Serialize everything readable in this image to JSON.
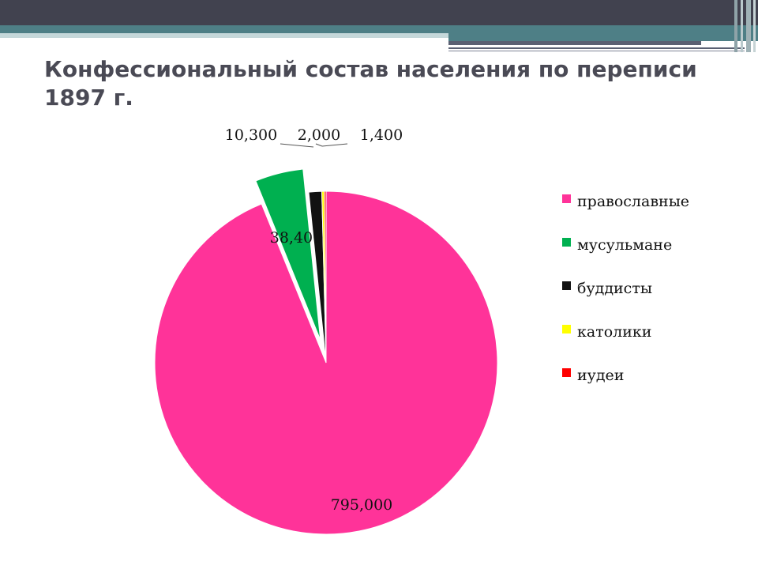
{
  "slide": {
    "title": "Конфессиональный состав населения по переписи 1897 г."
  },
  "chart_data": {
    "type": "pie",
    "exploded": true,
    "legend_position": "right",
    "categories": [
      "православные",
      "мусульмане",
      "буддисты",
      "католики",
      "иудеи"
    ],
    "values": [
      795000,
      38400,
      10300,
      2000,
      1400
    ],
    "labels": [
      "795,000",
      "38,400",
      "10,300",
      "2,000",
      "1,400"
    ],
    "colors": [
      "#ff3399",
      "#00b050",
      "#111111",
      "#ffff00",
      "#ff0000"
    ]
  }
}
